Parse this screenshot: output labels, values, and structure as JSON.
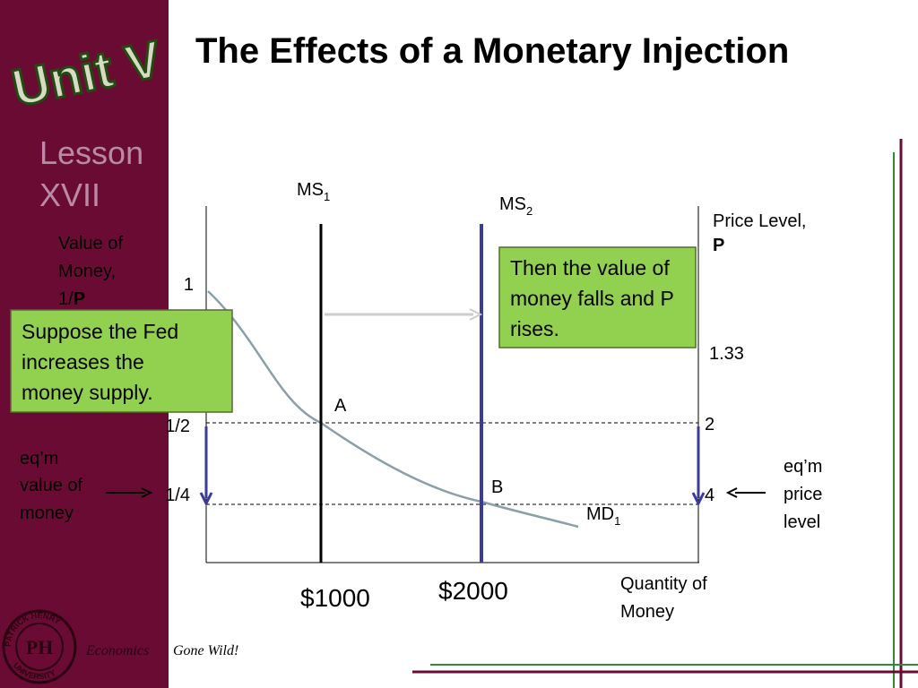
{
  "sidebar": {
    "logo": "Unit V",
    "lesson": [
      "Lesson",
      "XVII"
    ],
    "footer": {
      "seal_ring_top": "PATRICK HENRY",
      "seal_ring_bottom": "UNIVERSITY",
      "seal_center": "PH",
      "brand": [
        "Economics",
        "Gone Wild!"
      ]
    }
  },
  "title": "The Effects of a Monetary Injection",
  "diagram": {
    "left_axis_label": {
      "text": "Value of",
      "text2": "Money,",
      "text3": "1/",
      "bold": "P"
    },
    "right_axis_label": {
      "text": "Price Level,",
      "bold": "P"
    },
    "left_ticks": [
      "1",
      "1/2",
      "1/4"
    ],
    "right_ticks": [
      "1.33",
      "2",
      "4"
    ],
    "ms1": {
      "text": "MS",
      "sub": "1"
    },
    "ms2": {
      "text": "MS",
      "sub": "2"
    },
    "md1": {
      "text": "MD",
      "sub": "1"
    },
    "points": [
      "A",
      "B"
    ],
    "x_labels": [
      "$1000",
      "$2000"
    ],
    "x_axis_label": [
      "Quantity of",
      "Money"
    ],
    "eqm_value": [
      "eq’m",
      "value of",
      "money"
    ],
    "eqm_price": [
      "eq’m",
      "price",
      "level"
    ],
    "callout_left": [
      "Suppose the Fed",
      "increases the",
      "money supply."
    ],
    "callout_right": [
      "Then the value of",
      "money falls and P",
      "rises."
    ]
  }
}
